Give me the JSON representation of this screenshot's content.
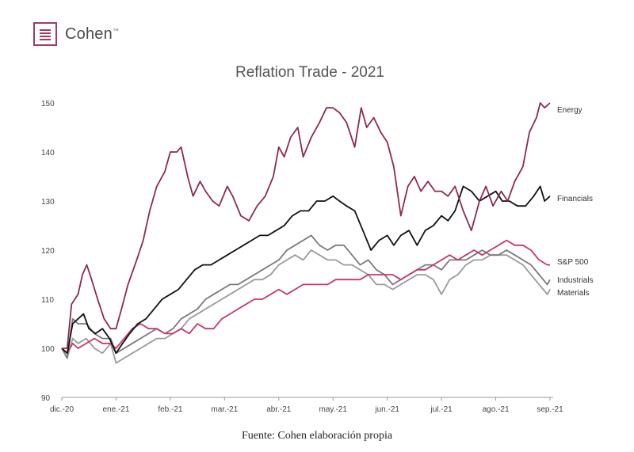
{
  "brand": {
    "name": "Cohen",
    "mark": "™"
  },
  "source_note": "Fuente: Cohen elaboración propia",
  "chart_data": {
    "type": "line",
    "title": "Reflation Trade - 2021",
    "xlabel": "",
    "ylabel": "",
    "ylim": [
      90,
      150
    ],
    "yticks": [
      90,
      100,
      110,
      120,
      130,
      140,
      150
    ],
    "xlim": [
      0,
      9
    ],
    "xticks": [
      {
        "x": 0,
        "label": "dic.-20"
      },
      {
        "x": 1,
        "label": "ene.-21"
      },
      {
        "x": 2,
        "label": "feb.-21"
      },
      {
        "x": 3,
        "label": "mar.-21"
      },
      {
        "x": 4,
        "label": "abr.-21"
      },
      {
        "x": 5,
        "label": "may.-21"
      },
      {
        "x": 6,
        "label": "jun.-21"
      },
      {
        "x": 7,
        "label": "jul.-21"
      },
      {
        "x": 8,
        "label": "ago.-21"
      },
      {
        "x": 9,
        "label": "sep.-21"
      }
    ],
    "grid": false,
    "legend": "end-of-line labels",
    "series": [
      {
        "name": "Energy",
        "color": "#8b2c4f",
        "x": [
          0,
          0.1,
          0.18,
          0.3,
          0.38,
          0.46,
          0.55,
          0.66,
          0.78,
          0.9,
          1.0,
          1.1,
          1.22,
          1.38,
          1.5,
          1.62,
          1.75,
          1.9,
          2.0,
          2.12,
          2.2,
          2.32,
          2.42,
          2.55,
          2.65,
          2.78,
          2.9,
          3.05,
          3.15,
          3.3,
          3.45,
          3.6,
          3.75,
          3.9,
          4.0,
          4.1,
          4.22,
          4.35,
          4.45,
          4.6,
          4.75,
          4.88,
          5.0,
          5.12,
          5.25,
          5.4,
          5.52,
          5.62,
          5.75,
          5.88,
          6.0,
          6.12,
          6.25,
          6.38,
          6.5,
          6.62,
          6.75,
          6.88,
          7.0,
          7.12,
          7.25,
          7.4,
          7.55,
          7.7,
          7.82,
          7.95,
          8.1,
          8.22,
          8.35,
          8.5,
          8.62,
          8.75,
          8.82,
          8.9,
          9.0
        ],
        "y": [
          100,
          100,
          109,
          111,
          115,
          117,
          114,
          110,
          106,
          104,
          104,
          108,
          113,
          118,
          122,
          128,
          133,
          136,
          140,
          140,
          141,
          135,
          131,
          134,
          132,
          130,
          129,
          133,
          131,
          127,
          126,
          129,
          131,
          135,
          141,
          139,
          143,
          145,
          139,
          143,
          146,
          149,
          149,
          148,
          146,
          141,
          149,
          145,
          147,
          144,
          142,
          137,
          127,
          133,
          135,
          132,
          134,
          132,
          132,
          131,
          133,
          128,
          124,
          130,
          133,
          129,
          132,
          130,
          134,
          137,
          144,
          147,
          150,
          149,
          150
        ]
      },
      {
        "name": "Financials",
        "color": "#111111",
        "x": [
          0,
          0.1,
          0.2,
          0.3,
          0.4,
          0.5,
          0.62,
          0.75,
          0.88,
          1.0,
          1.12,
          1.25,
          1.4,
          1.55,
          1.7,
          1.85,
          2.0,
          2.15,
          2.3,
          2.45,
          2.6,
          2.75,
          2.9,
          3.05,
          3.2,
          3.35,
          3.5,
          3.65,
          3.8,
          3.95,
          4.1,
          4.25,
          4.4,
          4.55,
          4.7,
          4.85,
          5.0,
          5.12,
          5.25,
          5.4,
          5.55,
          5.7,
          5.85,
          6.0,
          6.12,
          6.25,
          6.4,
          6.55,
          6.7,
          6.85,
          7.0,
          7.12,
          7.25,
          7.4,
          7.55,
          7.7,
          7.85,
          8.0,
          8.12,
          8.25,
          8.4,
          8.55,
          8.7,
          8.82,
          8.9,
          9.0
        ],
        "y": [
          100,
          99,
          105,
          106,
          107,
          104,
          103,
          104,
          102,
          99,
          101,
          103,
          105,
          106,
          108,
          110,
          111,
          112,
          114,
          116,
          117,
          117,
          118,
          119,
          120,
          121,
          122,
          123,
          123,
          124,
          125,
          127,
          128,
          128,
          130,
          130,
          131,
          130,
          129,
          128,
          124,
          120,
          122,
          123,
          121,
          123,
          124,
          121,
          124,
          125,
          127,
          126,
          128,
          133,
          132,
          130,
          131,
          132,
          130,
          130,
          129,
          129,
          131,
          133,
          130,
          131
        ]
      },
      {
        "name": "S&P 500",
        "color": "#c8376a",
        "x": [
          0,
          0.1,
          0.2,
          0.3,
          0.45,
          0.6,
          0.75,
          0.9,
          1.0,
          1.15,
          1.3,
          1.45,
          1.6,
          1.75,
          1.9,
          2.05,
          2.2,
          2.35,
          2.5,
          2.65,
          2.8,
          2.95,
          3.1,
          3.25,
          3.4,
          3.55,
          3.7,
          3.85,
          4.0,
          4.15,
          4.3,
          4.45,
          4.6,
          4.75,
          4.9,
          5.05,
          5.2,
          5.35,
          5.5,
          5.65,
          5.8,
          5.95,
          6.1,
          6.25,
          6.4,
          6.55,
          6.7,
          6.85,
          7.0,
          7.15,
          7.3,
          7.45,
          7.6,
          7.75,
          7.9,
          8.05,
          8.2,
          8.35,
          8.5,
          8.65,
          8.8,
          8.95,
          9.0
        ],
        "y": [
          100,
          99,
          101,
          100,
          101,
          102,
          101,
          101,
          100,
          102,
          104,
          105,
          104,
          104,
          103,
          103,
          104,
          103,
          105,
          104,
          104,
          106,
          107,
          108,
          109,
          110,
          110,
          111,
          112,
          111,
          112,
          113,
          113,
          113,
          113,
          114,
          114,
          114,
          114,
          115,
          115,
          115,
          115,
          114,
          115,
          116,
          116,
          117,
          118,
          119,
          118,
          119,
          120,
          119,
          120,
          121,
          122,
          121,
          121,
          120,
          118,
          117,
          117
        ]
      },
      {
        "name": "Industrials",
        "color": "#7a7a7a",
        "x": [
          0,
          0.1,
          0.2,
          0.3,
          0.45,
          0.6,
          0.75,
          0.9,
          1.0,
          1.15,
          1.3,
          1.45,
          1.6,
          1.75,
          1.9,
          2.05,
          2.2,
          2.35,
          2.5,
          2.65,
          2.8,
          2.95,
          3.1,
          3.25,
          3.4,
          3.55,
          3.7,
          3.85,
          4.0,
          4.15,
          4.3,
          4.45,
          4.6,
          4.75,
          4.9,
          5.05,
          5.2,
          5.35,
          5.5,
          5.65,
          5.8,
          5.95,
          6.1,
          6.25,
          6.4,
          6.55,
          6.7,
          6.85,
          7.0,
          7.15,
          7.3,
          7.45,
          7.6,
          7.75,
          7.9,
          8.05,
          8.2,
          8.35,
          8.5,
          8.65,
          8.8,
          8.95,
          9.0
        ],
        "y": [
          100,
          98,
          106,
          105,
          105,
          103,
          102,
          102,
          99,
          100,
          101,
          102,
          103,
          104,
          103,
          104,
          106,
          107,
          108,
          110,
          111,
          112,
          113,
          113,
          114,
          115,
          116,
          117,
          118,
          120,
          121,
          122,
          123,
          121,
          120,
          121,
          121,
          119,
          117,
          118,
          116,
          115,
          113,
          114,
          115,
          116,
          117,
          117,
          116,
          118,
          118,
          118,
          119,
          120,
          119,
          119,
          120,
          119,
          118,
          117,
          115,
          113,
          114
        ]
      },
      {
        "name": "Materials",
        "color": "#9a9a9a",
        "x": [
          0,
          0.1,
          0.2,
          0.3,
          0.45,
          0.6,
          0.75,
          0.9,
          1.0,
          1.15,
          1.3,
          1.45,
          1.6,
          1.75,
          1.9,
          2.05,
          2.2,
          2.35,
          2.5,
          2.65,
          2.8,
          2.95,
          3.1,
          3.25,
          3.4,
          3.55,
          3.7,
          3.85,
          4.0,
          4.15,
          4.3,
          4.45,
          4.6,
          4.75,
          4.9,
          5.05,
          5.2,
          5.35,
          5.5,
          5.65,
          5.8,
          5.95,
          6.1,
          6.25,
          6.4,
          6.55,
          6.7,
          6.85,
          7.0,
          7.15,
          7.3,
          7.45,
          7.6,
          7.75,
          7.9,
          8.05,
          8.2,
          8.35,
          8.5,
          8.65,
          8.8,
          8.95,
          9.0
        ],
        "y": [
          100,
          98,
          102,
          101,
          102,
          100,
          99,
          101,
          97,
          98,
          99,
          100,
          101,
          102,
          102,
          103,
          104,
          106,
          107,
          108,
          109,
          110,
          111,
          112,
          113,
          114,
          114,
          115,
          117,
          118,
          119,
          118,
          120,
          119,
          118,
          118,
          117,
          117,
          116,
          115,
          113,
          113,
          112,
          113,
          114,
          115,
          115,
          114,
          111,
          114,
          115,
          117,
          118,
          118,
          119,
          119,
          119,
          118,
          117,
          115,
          113,
          111,
          112
        ]
      }
    ]
  }
}
